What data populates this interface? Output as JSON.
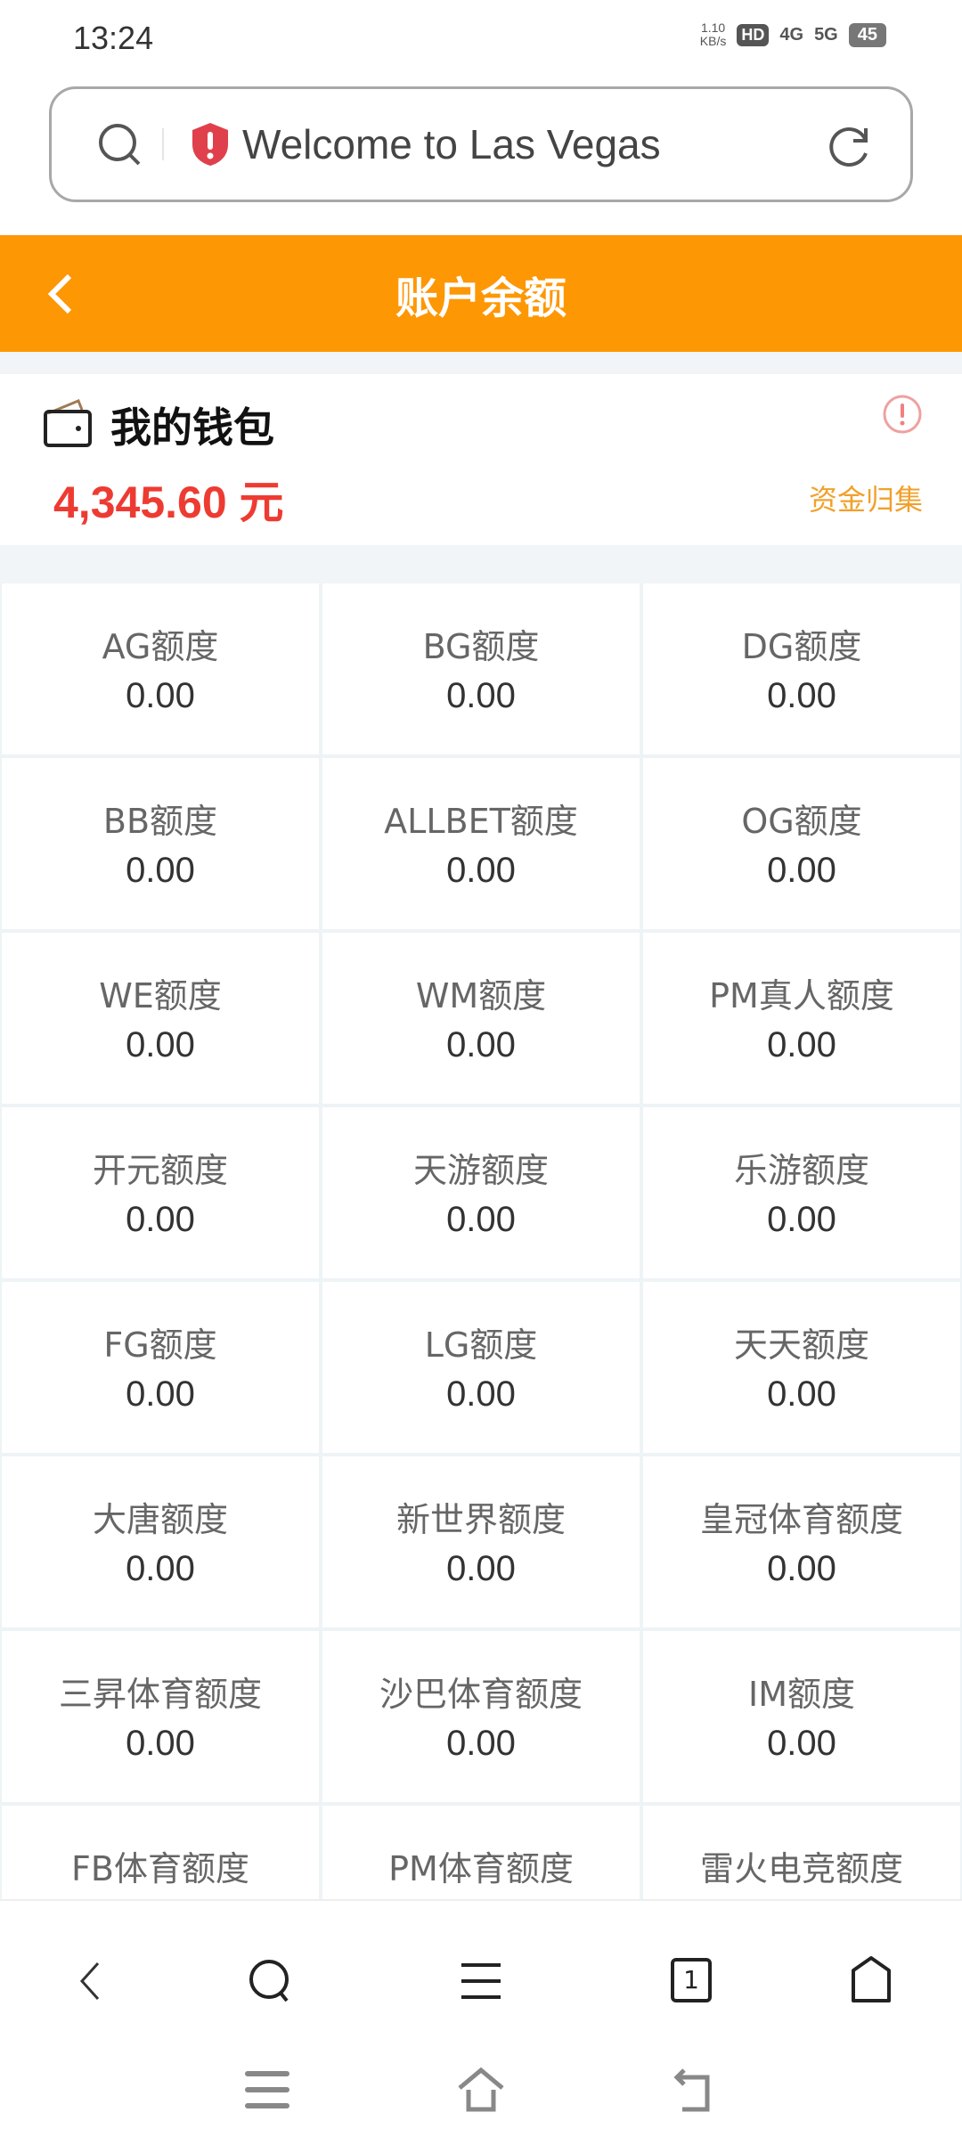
{
  "status_bar": {
    "time": "13:24",
    "speed": "1.10",
    "speed_unit": "KB/s",
    "hd": "HD",
    "net1": "4G",
    "net2": "5G",
    "battery": "45"
  },
  "browser": {
    "page_title": "Welcome to Las Vegas",
    "icons": [
      "search-icon",
      "shield-warning-icon",
      "reload-icon"
    ]
  },
  "header": {
    "title": "账户余额"
  },
  "wallet": {
    "title": "我的钱包",
    "amount": "4,345.60 元",
    "collect_label": "资金归集",
    "accent": "#ee3b32"
  },
  "grid": [
    {
      "label": "AG额度",
      "value": "0.00"
    },
    {
      "label": "BG额度",
      "value": "0.00"
    },
    {
      "label": "DG额度",
      "value": "0.00"
    },
    {
      "label": "BB额度",
      "value": "0.00"
    },
    {
      "label": "ALLBET额度",
      "value": "0.00"
    },
    {
      "label": "OG额度",
      "value": "0.00"
    },
    {
      "label": "WE额度",
      "value": "0.00"
    },
    {
      "label": "WM额度",
      "value": "0.00"
    },
    {
      "label": "PM真人额度",
      "value": "0.00"
    },
    {
      "label": "开元额度",
      "value": "0.00"
    },
    {
      "label": "天游额度",
      "value": "0.00"
    },
    {
      "label": "乐游额度",
      "value": "0.00"
    },
    {
      "label": "FG额度",
      "value": "0.00"
    },
    {
      "label": "LG额度",
      "value": "0.00"
    },
    {
      "label": "天天额度",
      "value": "0.00"
    },
    {
      "label": "大唐额度",
      "value": "0.00"
    },
    {
      "label": "新世界额度",
      "value": "0.00"
    },
    {
      "label": "皇冠体育额度",
      "value": "0.00"
    },
    {
      "label": "三昇体育额度",
      "value": "0.00"
    },
    {
      "label": "沙巴体育额度",
      "value": "0.00"
    },
    {
      "label": "IM额度",
      "value": "0.00"
    },
    {
      "label": "FB体育额度",
      "value": ""
    },
    {
      "label": "PM体育额度",
      "value": ""
    },
    {
      "label": "雷火电竞额度",
      "value": ""
    }
  ],
  "browser_toolbar": {
    "tab_count": "1"
  },
  "colors": {
    "header": "#fd9704",
    "collect": "#f2a02a",
    "background": "#f1f5f8"
  }
}
